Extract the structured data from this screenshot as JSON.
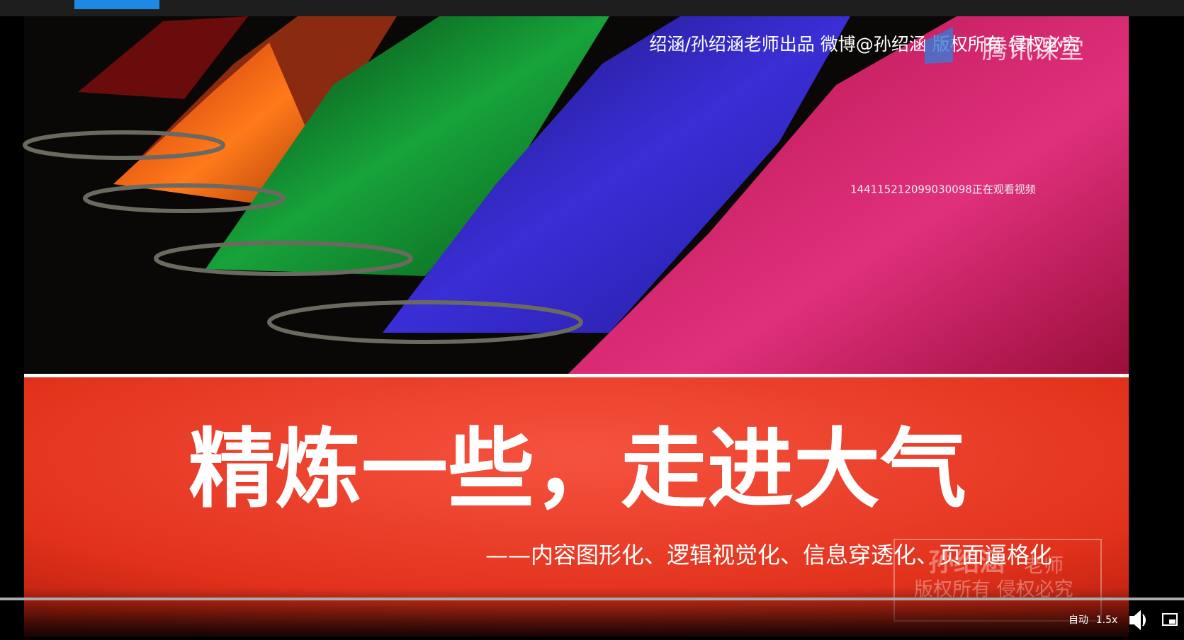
{
  "video": {
    "overlay_credit": "绍涵/孙绍涵老师出品 微博@孙绍涵 版权所有 侵权必究",
    "platform_logo": "腾讯课堂",
    "viewer_notice": "144115212099030098正在观看视频",
    "slide_title": "精炼一些，走进大气",
    "slide_subtitle": "——内容图形化、逻辑视觉化、信息穿透化、页面逼格化",
    "watermark_name": "孙绍涵",
    "watermark_role": "老师",
    "watermark_rights": "版权所有 侵权必究"
  },
  "controls": {
    "quality": "自动",
    "speed": "1.5x"
  }
}
